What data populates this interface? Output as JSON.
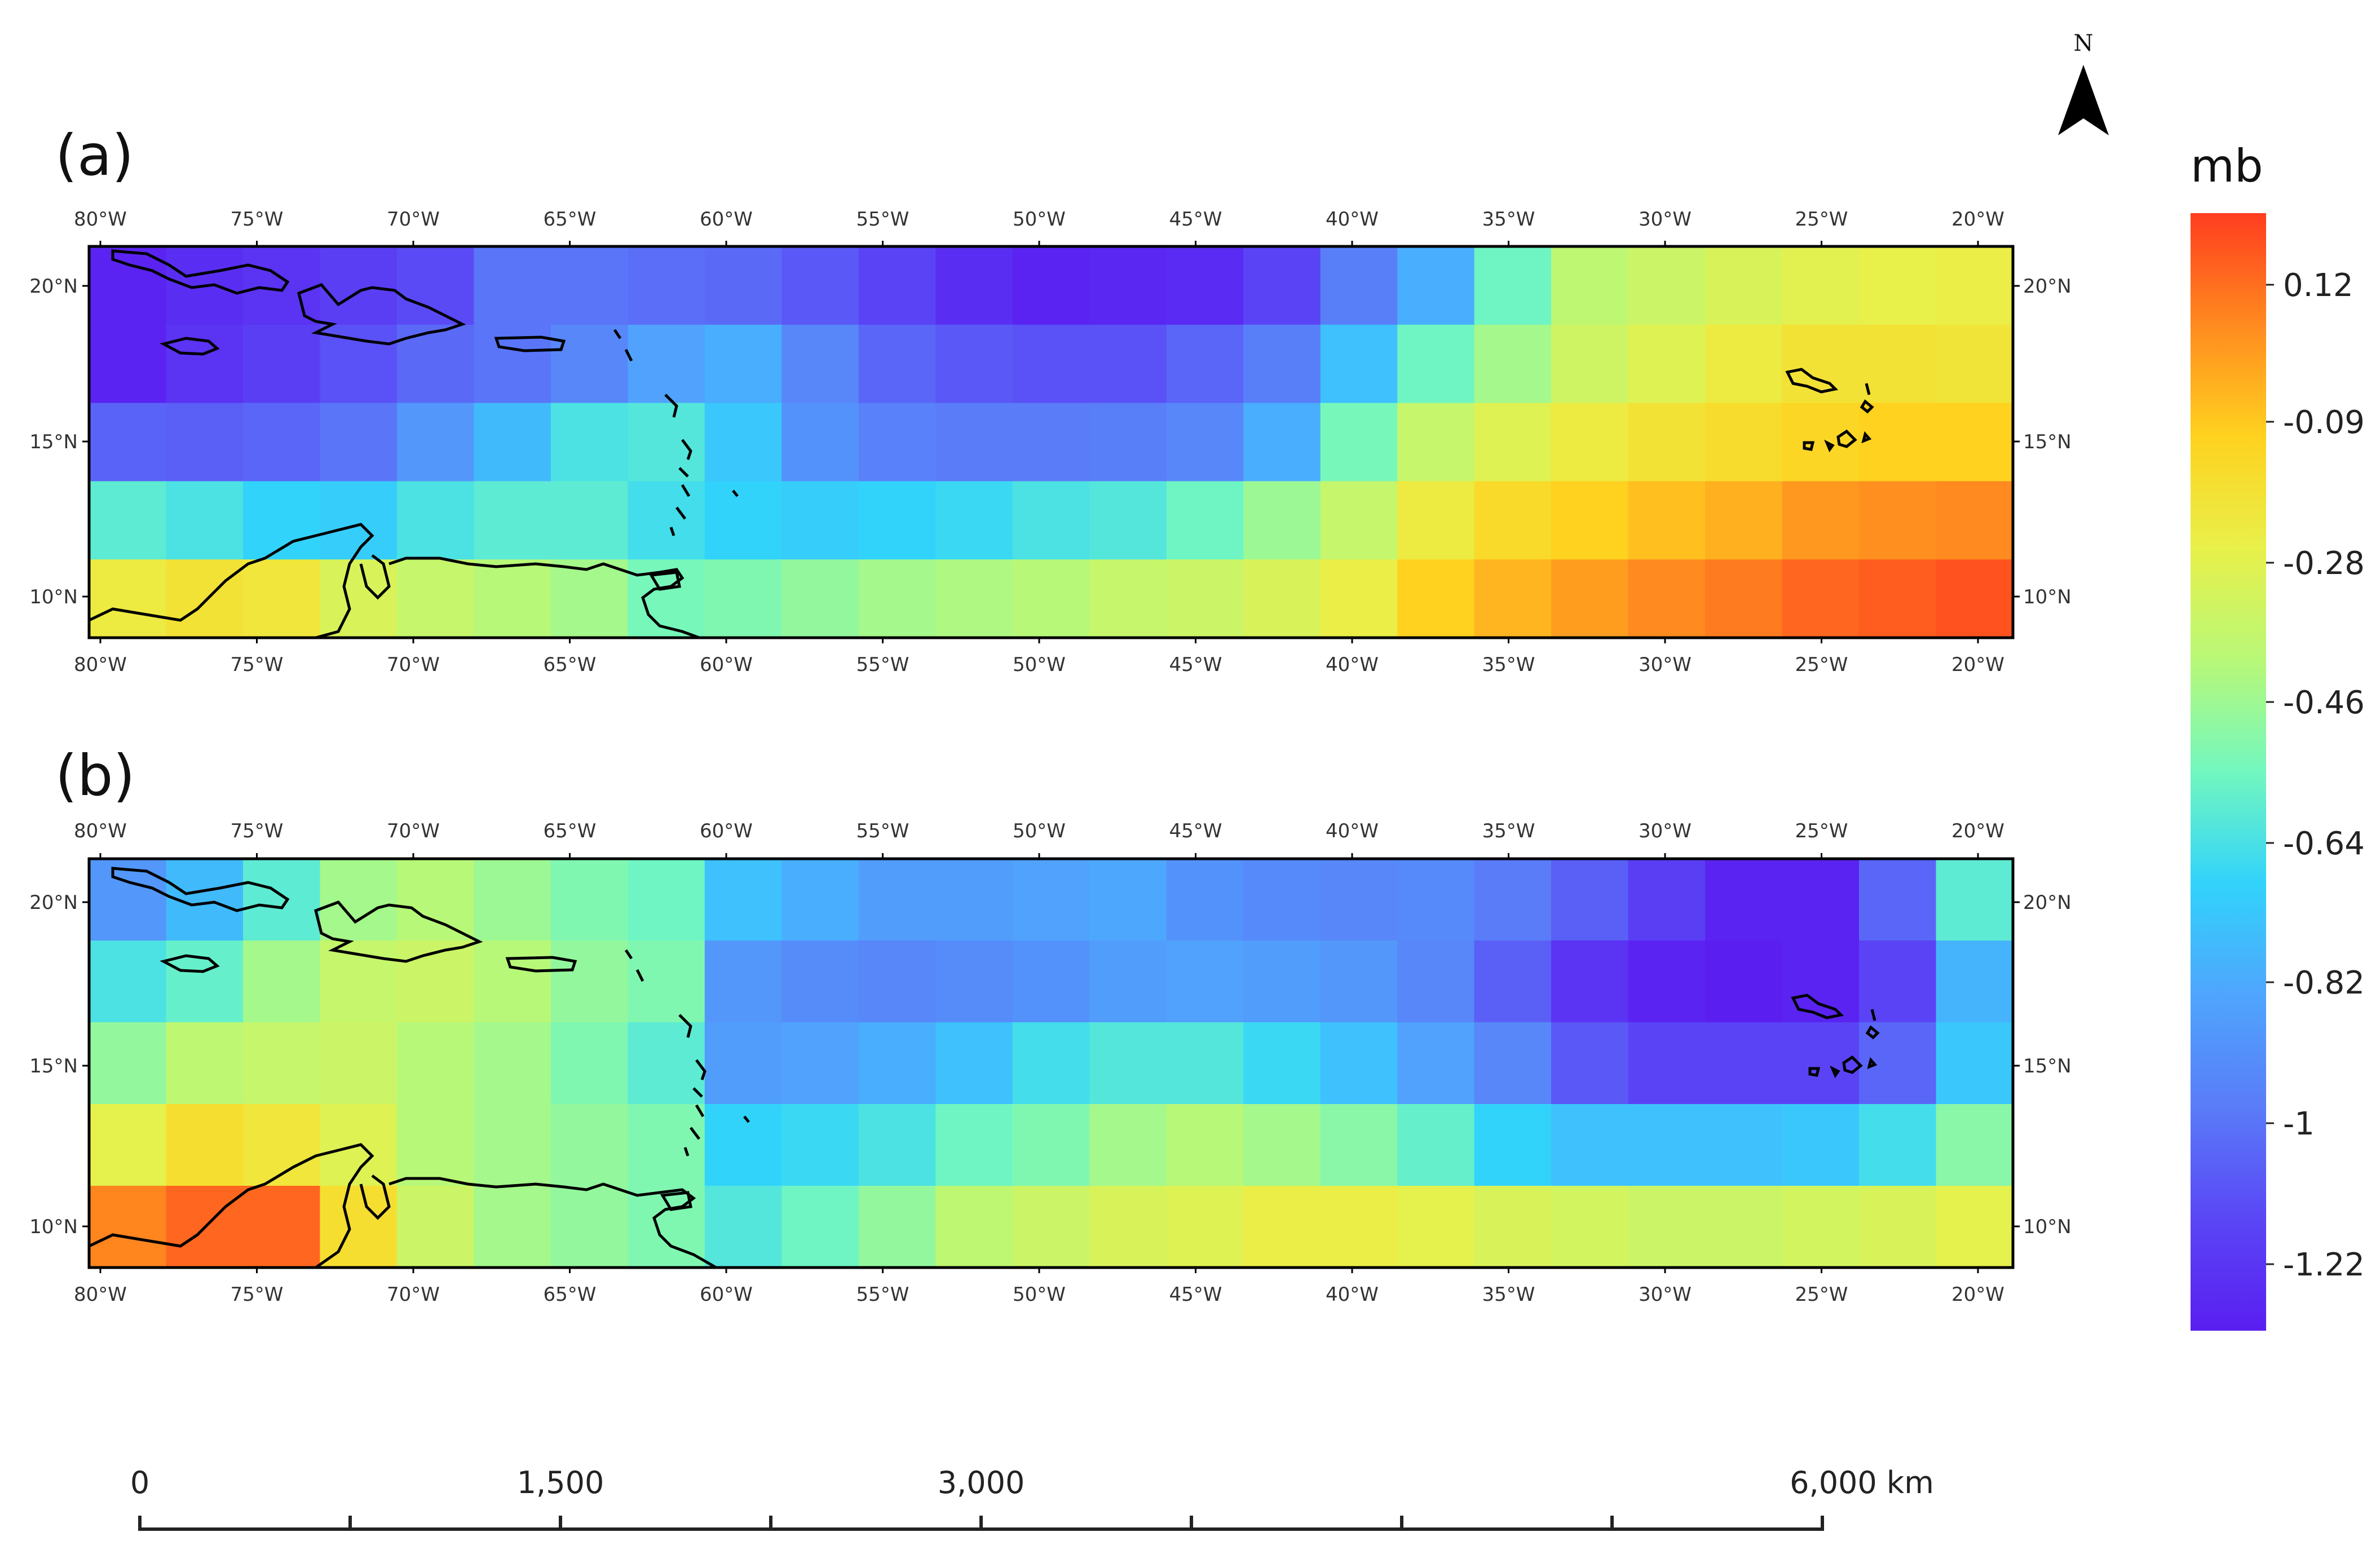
{
  "panels": [
    {
      "label": "(a)",
      "x_ticks": [
        "80°W",
        "75°W",
        "70°W",
        "65°W",
        "60°W",
        "55°W",
        "50°W",
        "45°W",
        "40°W",
        "35°W",
        "30°W",
        "25°W",
        "20°W"
      ],
      "y_ticks": [
        "20°N",
        "15°N",
        "10°N"
      ],
      "grid_columns": 25,
      "grid_rows": 5,
      "values_mb": [
        [
          -1.28,
          -1.24,
          -1.22,
          -1.18,
          -1.14,
          -1.02,
          -1.02,
          -1.04,
          -1.05,
          -1.1,
          -1.16,
          -1.24,
          -1.28,
          -1.27,
          -1.25,
          -1.16,
          -0.99,
          -0.82,
          -0.56,
          -0.38,
          -0.34,
          -0.3,
          -0.27,
          -0.25,
          -0.24
        ],
        [
          -1.28,
          -1.22,
          -1.18,
          -1.12,
          -1.05,
          -1.02,
          -0.96,
          -0.86,
          -0.82,
          -0.96,
          -1.06,
          -1.1,
          -1.12,
          -1.12,
          -1.06,
          -0.99,
          -0.76,
          -0.56,
          -0.44,
          -0.33,
          -0.28,
          -0.22,
          -0.18,
          -0.18,
          -0.19
        ],
        [
          -1.07,
          -1.08,
          -1.06,
          -1.02,
          -0.9,
          -0.78,
          -0.64,
          -0.62,
          -0.74,
          -0.92,
          -0.98,
          -1.0,
          -1.0,
          -0.99,
          -0.96,
          -0.82,
          -0.54,
          -0.36,
          -0.28,
          -0.22,
          -0.18,
          -0.15,
          -0.12,
          -0.1,
          -0.1
        ],
        [
          -0.6,
          -0.64,
          -0.7,
          -0.72,
          -0.64,
          -0.6,
          -0.6,
          -0.66,
          -0.7,
          -0.72,
          -0.7,
          -0.68,
          -0.64,
          -0.62,
          -0.56,
          -0.46,
          -0.36,
          -0.22,
          -0.14,
          -0.1,
          -0.06,
          -0.03,
          0.02,
          0.04,
          0.05
        ],
        [
          -0.22,
          -0.18,
          -0.2,
          -0.3,
          -0.36,
          -0.4,
          -0.44,
          -0.54,
          -0.52,
          -0.48,
          -0.44,
          -0.42,
          -0.4,
          -0.36,
          -0.34,
          -0.3,
          -0.24,
          -0.1,
          -0.04,
          0.01,
          0.05,
          0.08,
          0.12,
          0.14,
          0.16
        ]
      ]
    },
    {
      "label": "(b)",
      "x_ticks": [
        "80°W",
        "75°W",
        "70°W",
        "65°W",
        "60°W",
        "55°W",
        "50°W",
        "45°W",
        "40°W",
        "35°W",
        "30°W",
        "25°W",
        "20°W"
      ],
      "y_ticks": [
        "20°N",
        "15°N",
        "10°N"
      ],
      "grid_columns": 25,
      "grid_rows": 5,
      "values_mb": [
        [
          -0.9,
          -0.78,
          -0.6,
          -0.44,
          -0.4,
          -0.46,
          -0.52,
          -0.56,
          -0.76,
          -0.82,
          -0.88,
          -0.88,
          -0.86,
          -0.84,
          -0.92,
          -0.95,
          -0.96,
          -0.95,
          -1.0,
          -1.08,
          -1.18,
          -1.28,
          -1.28,
          -1.06,
          -0.6
        ],
        [
          -0.64,
          -0.58,
          -0.44,
          -0.36,
          -0.34,
          -0.4,
          -0.48,
          -0.52,
          -0.9,
          -0.94,
          -0.96,
          -0.94,
          -0.92,
          -0.88,
          -0.86,
          -0.88,
          -0.9,
          -0.96,
          -1.08,
          -1.22,
          -1.28,
          -1.3,
          -1.28,
          -1.16,
          -0.8
        ],
        [
          -0.48,
          -0.38,
          -0.36,
          -0.34,
          -0.4,
          -0.44,
          -0.52,
          -0.6,
          -0.88,
          -0.86,
          -0.82,
          -0.76,
          -0.66,
          -0.62,
          -0.62,
          -0.68,
          -0.76,
          -0.86,
          -0.96,
          -1.1,
          -1.16,
          -1.16,
          -1.16,
          -1.06,
          -0.74
        ],
        [
          -0.26,
          -0.16,
          -0.2,
          -0.28,
          -0.4,
          -0.44,
          -0.48,
          -0.52,
          -0.7,
          -0.68,
          -0.64,
          -0.56,
          -0.52,
          -0.44,
          -0.4,
          -0.44,
          -0.5,
          -0.58,
          -0.7,
          -0.76,
          -0.76,
          -0.76,
          -0.74,
          -0.66,
          -0.5
        ],
        [
          0.06,
          0.12,
          0.12,
          -0.16,
          -0.34,
          -0.44,
          -0.48,
          -0.52,
          -0.62,
          -0.56,
          -0.48,
          -0.38,
          -0.34,
          -0.3,
          -0.28,
          -0.24,
          -0.24,
          -0.26,
          -0.3,
          -0.32,
          -0.34,
          -0.34,
          -0.32,
          -0.3,
          -0.26
        ]
      ]
    }
  ],
  "colorbar": {
    "unit": "mb",
    "ticks": [
      "0.12",
      "-0.09",
      "-0.28",
      "-0.46",
      "-0.64",
      "-0.82",
      "-1",
      "-1.22"
    ],
    "min": -1.3,
    "max": 0.2,
    "colors": [
      "#ff3d1f",
      "#ff8a1f",
      "#ffd21f",
      "#e8f04a",
      "#b8f878",
      "#72f7bf",
      "#32d3fb",
      "#4fa5fd",
      "#5a7cf8",
      "#5a46f5",
      "#5a1ef0"
    ]
  },
  "scale_bar": {
    "labels": [
      "0",
      "1,500",
      "3,000",
      "6,000 km"
    ]
  },
  "north_arrow": {
    "letter": "N",
    "icon": "north-arrow-icon"
  }
}
